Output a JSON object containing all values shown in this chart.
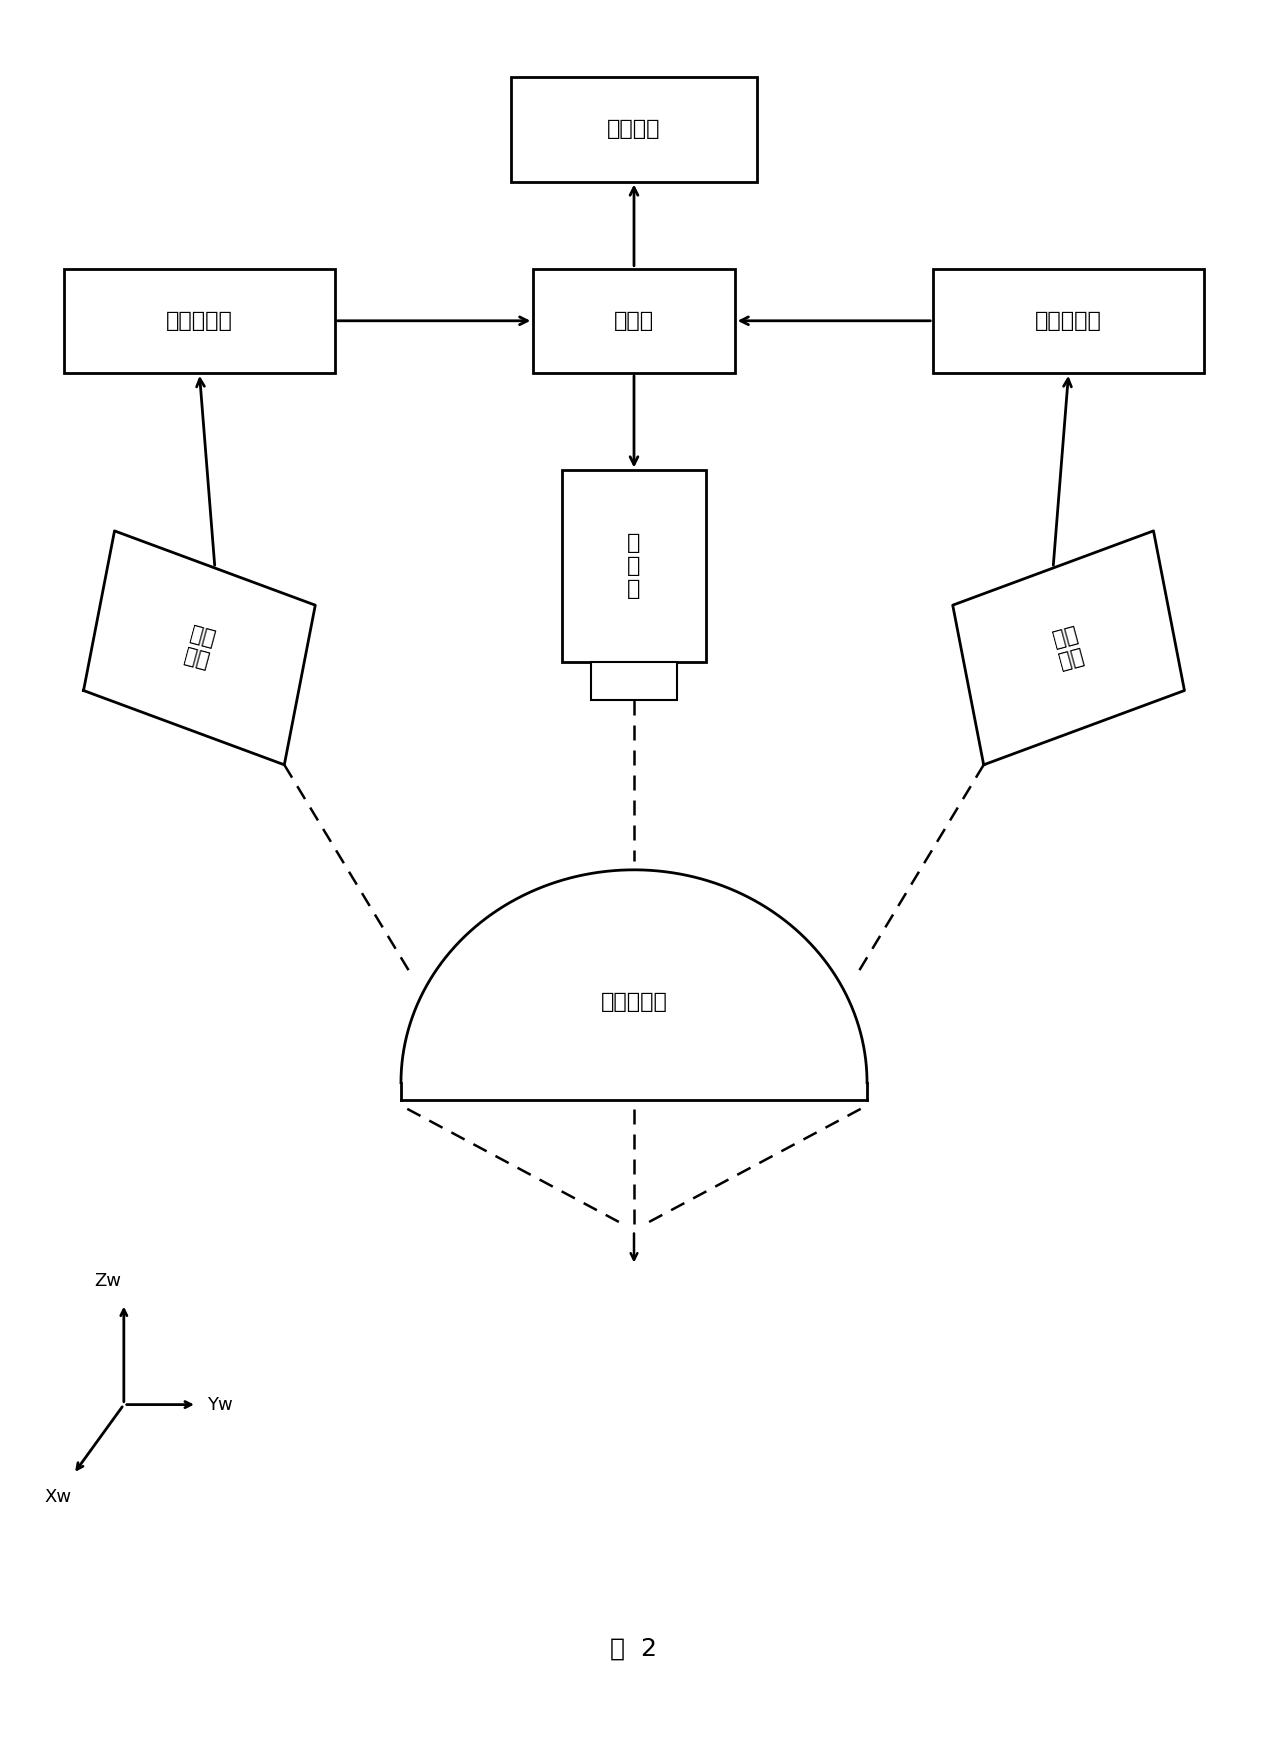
{
  "bg_color": "#ffffff",
  "fig_caption": "图  2",
  "display_label": "显示设备",
  "computer_label": "计算机",
  "left_capture_label": "图像采集卡",
  "right_capture_label": "图像采集卡",
  "projector_label": "投\n影\n仪",
  "left_camera_label": "左摄\n像机",
  "right_camera_label": "右摄\n像机",
  "object_label": "被检测物体",
  "zw_label": "Zw",
  "yw_label": "Yw",
  "xw_label": "Xw",
  "font_size_box": 16,
  "font_size_caption": 18,
  "font_size_axis": 13
}
